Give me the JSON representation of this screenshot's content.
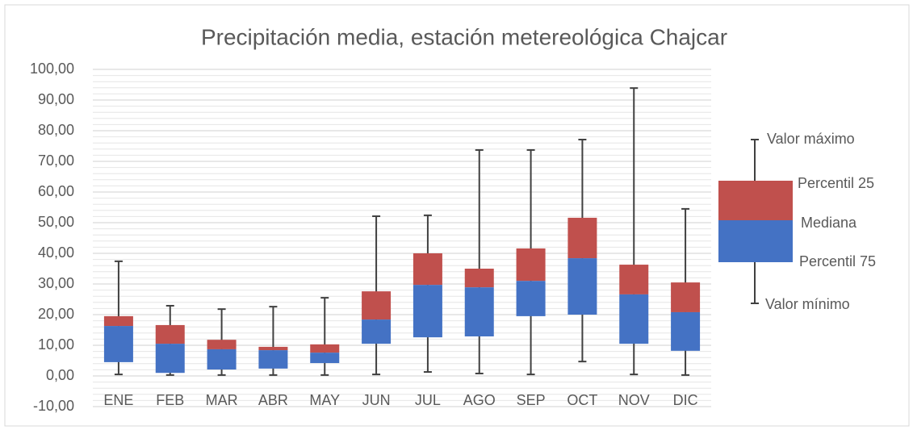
{
  "chart_data": {
    "type": "box",
    "title": "Precipitación media, estación metereológica Chajcar",
    "categories": [
      "ENE",
      "FEB",
      "MAR",
      "ABR",
      "MAY",
      "JUN",
      "JUL",
      "AGO",
      "SEP",
      "OCT",
      "NOV",
      "DIC"
    ],
    "series": [
      {
        "name": "Valor máximo",
        "color": "#404040",
        "values": [
          37.4,
          22.9,
          21.8,
          22.6,
          25.5,
          52.1,
          52.4,
          73.7,
          73.7,
          77.1,
          93.9,
          54.5
        ]
      },
      {
        "name": "Percentil 25",
        "color": "#c0504d",
        "values": [
          19.5,
          16.6,
          11.8,
          9.5,
          10.3,
          27.6,
          40.0,
          35.0,
          41.6,
          51.6,
          36.3,
          30.5
        ]
      },
      {
        "name": "Mediana",
        "color": "#4472c4",
        "values": [
          16.3,
          10.5,
          8.7,
          8.4,
          7.6,
          18.4,
          29.7,
          28.9,
          31.0,
          38.4,
          26.6,
          20.8
        ]
      },
      {
        "name": "Percentil 75",
        "color": "#4472c4",
        "values": [
          4.5,
          1.0,
          2.1,
          2.4,
          4.2,
          10.5,
          12.6,
          12.9,
          19.5,
          20.0,
          10.5,
          8.2
        ]
      },
      {
        "name": "Valor mínimo",
        "color": "#404040",
        "values": [
          0.5,
          0.3,
          0.3,
          0.3,
          0.3,
          0.5,
          1.3,
          0.8,
          0.5,
          4.7,
          0.5,
          0.3
        ]
      }
    ],
    "ylim": [
      -10,
      100
    ],
    "yticks": [
      {
        "value": -10,
        "label": "-10,00"
      },
      {
        "value": 0,
        "label": "0,00"
      },
      {
        "value": 10,
        "label": "10,00"
      },
      {
        "value": 20,
        "label": "20,00"
      },
      {
        "value": 30,
        "label": "30,00"
      },
      {
        "value": 40,
        "label": "40,00"
      },
      {
        "value": 50,
        "label": "50,00"
      },
      {
        "value": 60,
        "label": "60,00"
      },
      {
        "value": 70,
        "label": "70,00"
      },
      {
        "value": 80,
        "label": "80,00"
      },
      {
        "value": 90,
        "label": "90,00"
      },
      {
        "value": 100,
        "label": "100,00"
      }
    ],
    "grid": true
  }
}
